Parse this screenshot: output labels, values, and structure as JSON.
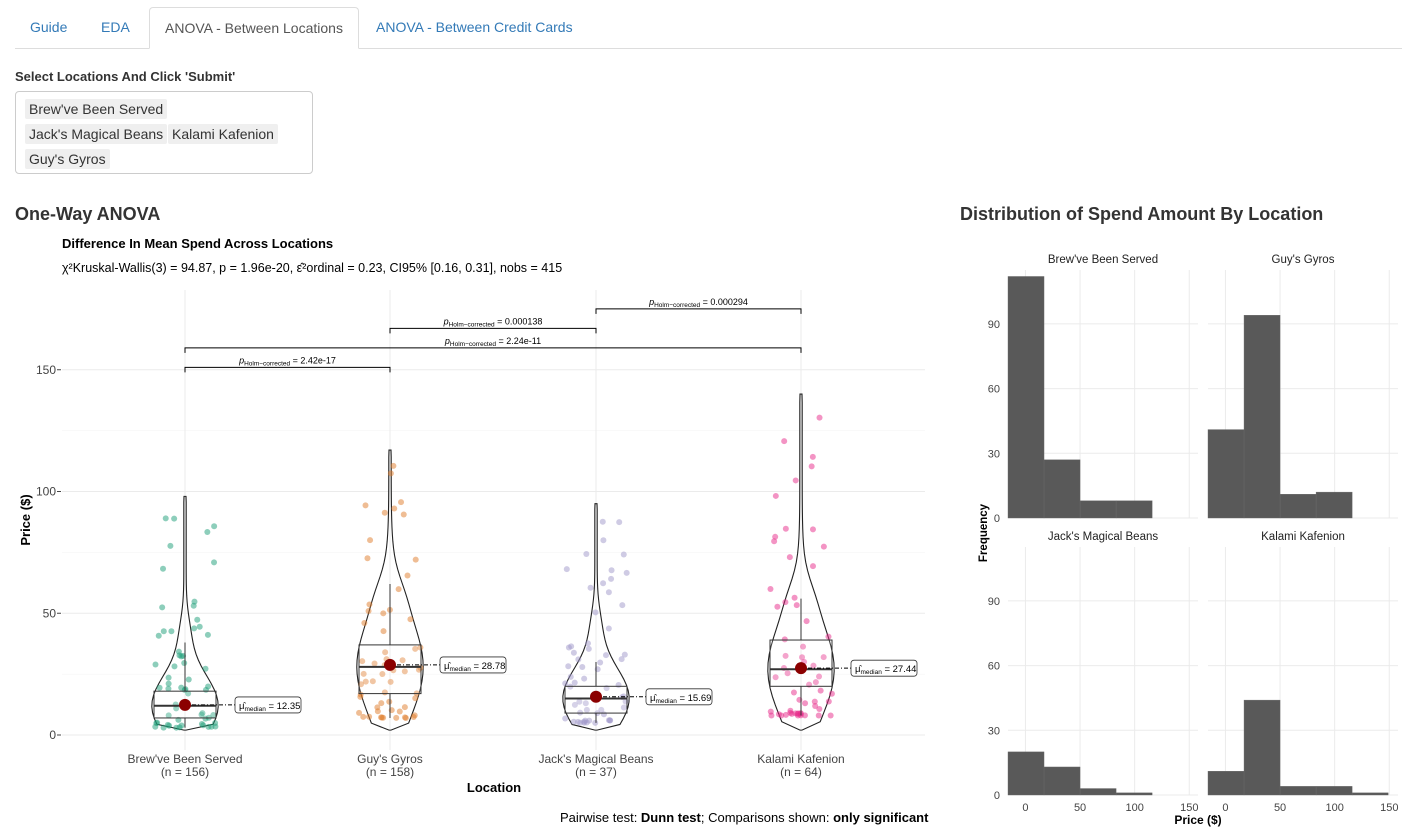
{
  "tabs": [
    {
      "label": "Guide"
    },
    {
      "label": "EDA"
    },
    {
      "label": "ANOVA - Between Locations",
      "active": true
    },
    {
      "label": "ANOVA - Between Credit Cards"
    }
  ],
  "selector": {
    "label": "Select Locations And Click 'Submit'",
    "selected": [
      "Brew've Been Served",
      "Jack's Magical Beans",
      "Kalami Kafenion",
      "Guy's Gyros"
    ]
  },
  "anova": {
    "heading": "One-Way ANOVA",
    "plot_title": "Difference In Mean Spend Across Locations",
    "subtitle_stat": "χ²Kruskal-Wallis(3) = 94.87, p = 1.96e-20, ε̂²ordinal = 0.23, CI95% [0.16, 0.31], nobs = 415",
    "footer_prefix": "Pairwise test: ",
    "footer_test": "Dunn test",
    "footer_mid": "; Comparisons shown: ",
    "footer_shown": "only significant"
  },
  "distribution": {
    "heading": "Distribution of Spend Amount By Location"
  },
  "chart_data": [
    {
      "type": "violin-box",
      "title": "Difference In Mean Spend Across Locations",
      "xlabel": "Location",
      "ylabel": "Price ($)",
      "ylim": [
        0,
        165
      ],
      "yticks": [
        0,
        50,
        100,
        150
      ],
      "categories": [
        "Brew've Been Served",
        "Guy's Gyros",
        "Jack's Magical Beans",
        "Kalami Kafenion"
      ],
      "counts": [
        "(n = 156)",
        "(n = 158)",
        "(n = 37)",
        "(n = 64)"
      ],
      "colors": [
        "#1b9e77",
        "#e07b2a",
        "#9f98c9",
        "#e7298a"
      ],
      "medians": [
        12.35,
        28.78,
        15.69,
        27.44
      ],
      "median_labels": [
        "= 12.35",
        "= 28.78",
        "= 15.69",
        "= 27.44"
      ],
      "box": [
        {
          "q1": 7,
          "median": 12,
          "q3": 18,
          "min": 3,
          "max": 38
        },
        {
          "q1": 17,
          "median": 28,
          "q3": 37,
          "min": 7,
          "max": 62
        },
        {
          "q1": 9,
          "median": 15,
          "q3": 20,
          "min": 5,
          "max": 30
        },
        {
          "q1": 20,
          "median": 27,
          "q3": 39,
          "min": 8,
          "max": 56
        }
      ],
      "max_values": [
        98,
        117,
        95,
        140
      ],
      "comparisons": [
        {
          "from": 0,
          "to": 1,
          "y": 151,
          "label": "= 2.42e-17"
        },
        {
          "from": 0,
          "to": 3,
          "y": 159,
          "label": "= 2.24e-11"
        },
        {
          "from": 1,
          "to": 2,
          "y": 167,
          "label": "= 0.000138"
        },
        {
          "from": 2,
          "to": 3,
          "y": 175,
          "label": "= 0.000294"
        }
      ],
      "p_symbol": "p",
      "p_sub": "Holm−corrected",
      "mu_sub": "median"
    },
    {
      "type": "bar",
      "subtype": "histogram-facets",
      "xlabel": "Price ($)",
      "ylabel": "Frequency",
      "bin_width": 33,
      "bin_start": -16,
      "xticks": [
        0,
        50,
        100,
        150
      ],
      "yticks": [
        0,
        30,
        60,
        90
      ],
      "ylim": [
        0,
        115
      ],
      "xlim": [
        -16,
        158
      ],
      "facets": [
        {
          "name": "Brew've Been Served",
          "values": [
            112,
            27,
            8,
            8
          ]
        },
        {
          "name": "Guy's Gyros",
          "values": [
            41,
            94,
            11,
            12
          ]
        },
        {
          "name": "Jack's Magical Beans",
          "values": [
            20,
            13,
            3,
            1
          ]
        },
        {
          "name": "Kalami Kafenion",
          "values": [
            11,
            44,
            4,
            4,
            1
          ]
        }
      ]
    }
  ]
}
